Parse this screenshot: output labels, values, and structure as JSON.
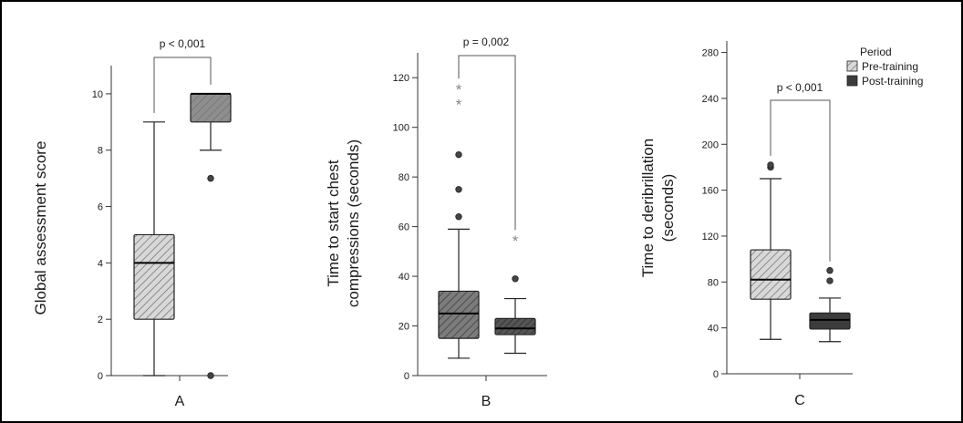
{
  "chart_data": [
    {
      "type": "box",
      "panel_label": "A",
      "ylabel": "Global assessment score",
      "ylim": [
        0,
        11
      ],
      "yticks": [
        0,
        2,
        4,
        6,
        8,
        10
      ],
      "boxes": [
        {
          "series": "Pre-training",
          "min": 0,
          "q1": 2,
          "median": 4,
          "q3": 5,
          "max": 9,
          "outliers": [],
          "extremes": []
        },
        {
          "series": "Post-training",
          "min": 8,
          "q1": 9,
          "median": 10,
          "q3": 10,
          "max": 10,
          "outliers": [
            7,
            0
          ],
          "extremes": []
        }
      ],
      "pvalue": "p < 0,001"
    },
    {
      "type": "box",
      "panel_label": "B",
      "ylabel": [
        "Time to start chest",
        "compressions (seconds)"
      ],
      "ylim": [
        0,
        130
      ],
      "yticks": [
        0,
        20,
        40,
        60,
        80,
        100,
        120
      ],
      "boxes": [
        {
          "series": "Pre-training",
          "min": 7,
          "q1": 15,
          "median": 25,
          "q3": 34,
          "max": 59,
          "outliers": [
            64,
            75,
            89
          ],
          "extremes": [
            110,
            116
          ]
        },
        {
          "series": "Post-training",
          "min": 9,
          "q1": 16.5,
          "median": 19,
          "q3": 23,
          "max": 31,
          "outliers": [
            39
          ],
          "extremes": [
            55
          ]
        }
      ],
      "pvalue": "p = 0,002"
    },
    {
      "type": "box",
      "panel_label": "C",
      "ylabel": [
        "Time to deribrillation",
        "(seconds)"
      ],
      "ylim": [
        0,
        290
      ],
      "yticks": [
        0,
        40,
        80,
        120,
        160,
        200,
        240,
        280
      ],
      "boxes": [
        {
          "series": "Pre-training",
          "min": 30,
          "q1": 65,
          "median": 82,
          "q3": 108,
          "max": 170,
          "outliers": [
            180,
            182
          ],
          "extremes": []
        },
        {
          "series": "Post-training",
          "min": 28,
          "q1": 39,
          "median": 47,
          "q3": 53,
          "max": 66,
          "outliers": [
            81,
            90
          ],
          "extremes": []
        }
      ],
      "pvalue": "p < 0,001",
      "legend": {
        "title": "Period",
        "items": [
          {
            "label": "Pre-training",
            "style": "hatched-light"
          },
          {
            "label": "Post-training",
            "style": "dark-gray"
          }
        ]
      }
    }
  ],
  "colors": {
    "box_a_pre": "#cfcfcf",
    "box_a_post": "#8a8a8a",
    "box_b_pre": "#5a5a5a",
    "box_b_post": "#4a4a4a",
    "box_c_pre": "#e2e2e2",
    "box_c_post": "#3c3c3c",
    "frame": "#000000"
  }
}
